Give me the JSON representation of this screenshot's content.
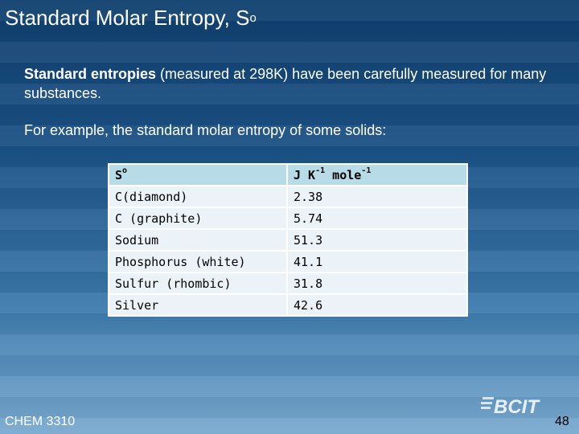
{
  "slide": {
    "title": "Standard Molar Entropy, S",
    "title_superscript": "o",
    "intro_bold": "Standard entropies",
    "intro_rest": " (measured at 298K) have been carefully measured for many substances.",
    "example_text": "For example, the standard molar entropy of some solids:",
    "footer_course": "CHEM 3310",
    "logo_text": "BCIT",
    "page_number": "48"
  },
  "table": {
    "header_symbol": "S",
    "header_symbol_superscript": "o",
    "units_parts": [
      "J K",
      "-1",
      " mole",
      "-1"
    ],
    "rows": [
      {
        "substance": "C(diamond)",
        "value": "2.38"
      },
      {
        "substance": "C (graphite)",
        "value": "5.74"
      },
      {
        "substance": "Sodium",
        "value": "51.3"
      },
      {
        "substance": "Phosphorus (white)",
        "value": "41.1"
      },
      {
        "substance": "Sulfur (rhombic)",
        "value": "31.8"
      },
      {
        "substance": "Silver",
        "value": "42.6"
      }
    ]
  },
  "colors": {
    "background_top": "#0f3f6e",
    "background_bottom": "#7aaad0",
    "table_header": "#b7dce7",
    "table_row": "#ecf3f8"
  }
}
